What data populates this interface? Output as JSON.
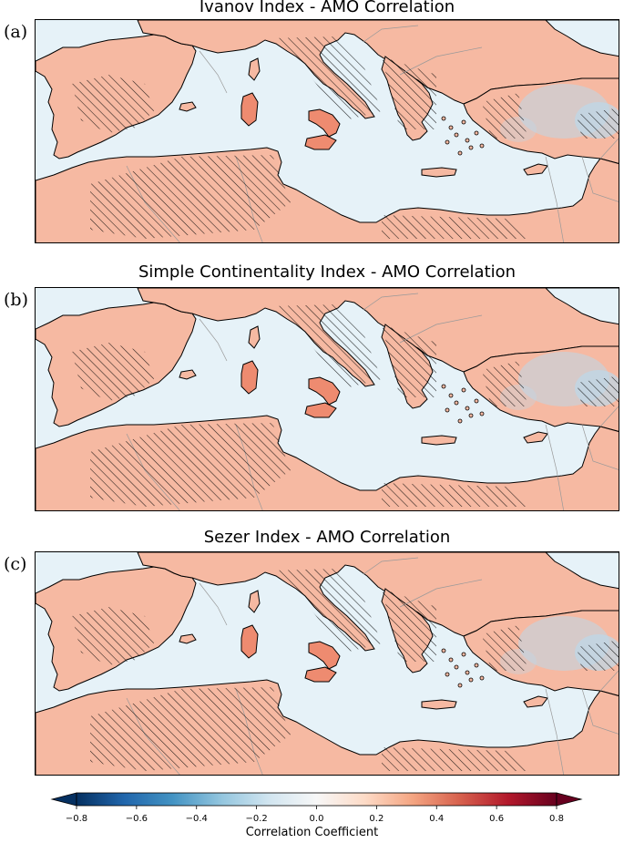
{
  "panels": [
    {
      "label": "(a)",
      "title": "Ivanov Index - AMO Correlation"
    },
    {
      "label": "(b)",
      "title": "Simple Continentality Index - AMO Correlation"
    },
    {
      "label": "(c)",
      "title": "Sezer Index - AMO Correlation"
    }
  ],
  "colorbar": {
    "label": "Correlation Coefficient",
    "ticks": [
      "−0.8",
      "−0.6",
      "−0.4",
      "−0.2",
      "0.0",
      "0.2",
      "0.4",
      "0.6",
      "0.8"
    ],
    "range": [
      -0.8,
      0.8
    ],
    "extend": "both",
    "colormap": [
      "#053061",
      "#2166ac",
      "#4393c3",
      "#92c5de",
      "#d1e5f0",
      "#f7f7f7",
      "#fddbc7",
      "#f4a582",
      "#d6604d",
      "#b2182b",
      "#67001f"
    ]
  },
  "colors": {
    "sea": "#e6f2f8",
    "land_positive": "#f6b9a2",
    "land_strong": "#ee8b70",
    "land_negative": "#bcd9ea"
  }
}
